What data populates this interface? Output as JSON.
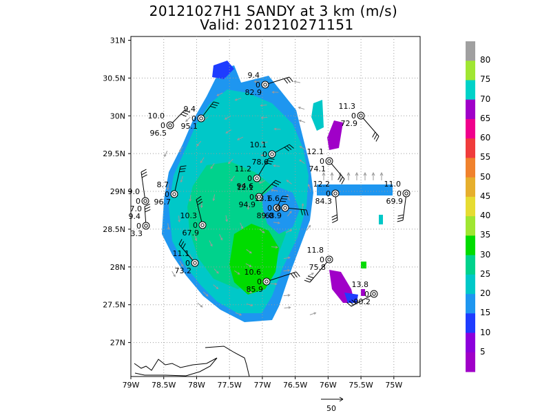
{
  "title": "20121027H1 SANDY at 3 km (m/s)",
  "subtitle": "Valid: 201210271151",
  "map": {
    "lon_ticks": [
      "79W",
      "78.5W",
      "78W",
      "77.5W",
      "77W",
      "76.5W",
      "76W",
      "75.5W",
      "75W"
    ],
    "lon_values": [
      -79,
      -78.5,
      -78,
      -77.5,
      -77,
      -76.5,
      -76,
      -75.5,
      -75
    ],
    "lat_ticks": [
      "31N",
      "30.5N",
      "30N",
      "29.5N",
      "29N",
      "28.5N",
      "28N",
      "27.5N",
      "27N"
    ],
    "lat_values": [
      31,
      30.5,
      30,
      29.5,
      29,
      28.5,
      28,
      27.5,
      27
    ],
    "lon_range": [
      -79,
      -74.6
    ],
    "lat_range": [
      26.55,
      31.05
    ],
    "grid": "dotted",
    "storm_center": {
      "lon": -76.8,
      "lat": 28.8
    },
    "reference_vector_label": "50"
  },
  "colorbar": {
    "levels": [
      "80",
      "75",
      "70",
      "65",
      "60",
      "55",
      "50",
      "45",
      "40",
      "35",
      "30",
      "25",
      "20",
      "15",
      "10",
      "5"
    ],
    "colors": [
      "#a0a0a0",
      "#a0e632",
      "#00d2c8",
      "#a000c8",
      "#f0008c",
      "#f03c3c",
      "#f0822d",
      "#e6af2d",
      "#e6dc32",
      "#a0e632",
      "#00dc00",
      "#00d28c",
      "#00c8c8",
      "#1e96f0",
      "#1e3cff",
      "#8c00dc",
      "#a000c8"
    ]
  },
  "stations": [
    {
      "line1": "9.4",
      "line2": "0",
      "line3": "82.9"
    },
    {
      "line1": "10.0",
      "line2": "0",
      "line3": "96.5"
    },
    {
      "line1": "9.4",
      "line2": "0",
      "line3": "95.1"
    },
    {
      "line1": "11.3",
      "line2": "0",
      "line3": "72.9"
    },
    {
      "line1": "10.1",
      "line2": "0",
      "line3": "78.6"
    },
    {
      "line1": "12.1",
      "line2": "0",
      "line3": "74.1"
    },
    {
      "line1": "11.2",
      "line2": "0",
      "line3": "94.6"
    },
    {
      "line1": "12.1",
      "line2": "0",
      "line3": "94.9"
    },
    {
      "line1": "13.1",
      "line2": "0",
      "line3": "89.0"
    },
    {
      "line1": "6.6",
      "line2": "0",
      "line3": "68.9"
    },
    {
      "line1": "12.2",
      "line2": "0",
      "line3": "84.3"
    },
    {
      "line1": "11.0",
      "line2": "0",
      "line3": "69.9"
    },
    {
      "line1": "9.0",
      "line2": "0",
      "line3": "7.0"
    },
    {
      "line1": "8.7",
      "line2": "0",
      "line3": "96.7"
    },
    {
      "line1": "9.4",
      "line2": "0",
      "line3": "3.3"
    },
    {
      "line1": "10.3",
      "line2": "0",
      "line3": "67.9"
    },
    {
      "line1": "11.1",
      "line2": "0",
      "line3": "73.2"
    },
    {
      "line1": "11.8",
      "line2": "0",
      "line3": "75.8"
    },
    {
      "line1": "10.6",
      "line2": "0",
      "line3": "85.9"
    },
    {
      "line1": "13.8",
      "line2": "0",
      "line3": "90.2"
    }
  ]
}
